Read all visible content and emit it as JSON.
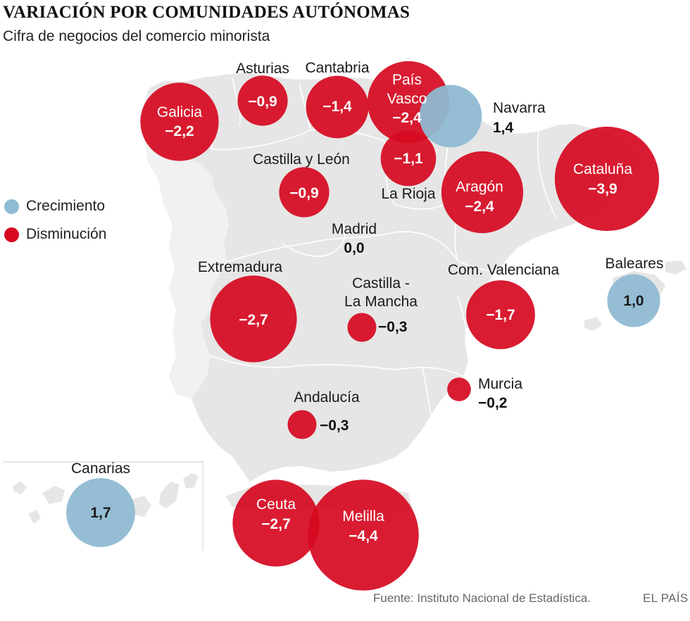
{
  "title": "VARIACIÓN POR COMUNIDADES AUTÓNOMAS",
  "subtitle": "Cifra de negocios del comercio minorista",
  "legend": {
    "growth": {
      "label": "Crecimiento",
      "color": "#8fbbd3"
    },
    "decrease": {
      "label": "Disminución",
      "color": "#d6091f"
    }
  },
  "source": "Fuente: Instituto Nacional de Estadística.",
  "brand": "EL PAÍS",
  "chart_data": {
    "type": "proportional-symbol-map",
    "title": "VARIACIÓN POR COMUNIDADES AUTÓNOMAS",
    "subtitle": "Cifra de negocios del comercio minorista",
    "unit": "%",
    "regions": [
      {
        "name": "Galicia",
        "value": -2.2,
        "label": "−2,2",
        "label_position": "inside"
      },
      {
        "name": "Asturias",
        "value": -0.9,
        "label": "−0,9",
        "label_position": "above"
      },
      {
        "name": "Cantabria",
        "value": -1.4,
        "label": "−1,4",
        "label_position": "above"
      },
      {
        "name": "País Vasco",
        "value": -2.4,
        "label": "−2,4",
        "label_position": "inside"
      },
      {
        "name": "Navarra",
        "value": 1.4,
        "label": "1,4",
        "label_position": "right"
      },
      {
        "name": "La Rioja",
        "value": -1.1,
        "label": "−1,1",
        "label_position": "below"
      },
      {
        "name": "Castilla y León",
        "value": -0.9,
        "label": "−0,9",
        "label_position": "above"
      },
      {
        "name": "Aragón",
        "value": -2.4,
        "label": "−2,4",
        "label_position": "inside"
      },
      {
        "name": "Cataluña",
        "value": -3.9,
        "label": "−3,9",
        "label_position": "inside"
      },
      {
        "name": "Madrid",
        "value": 0.0,
        "label": "0,0",
        "label_position": "none"
      },
      {
        "name": "Extremadura",
        "value": -2.7,
        "label": "−2,7",
        "label_position": "above"
      },
      {
        "name": "Castilla - La Mancha",
        "value": -0.3,
        "label": "−0,3",
        "label_position": "above"
      },
      {
        "name": "Com. Valenciana",
        "value": -1.7,
        "label": "−1,7",
        "label_position": "above"
      },
      {
        "name": "Baleares",
        "value": 1.0,
        "label": "1,0",
        "label_position": "above"
      },
      {
        "name": "Murcia",
        "value": -0.2,
        "label": "−0,2",
        "label_position": "right"
      },
      {
        "name": "Andalucía",
        "value": -0.3,
        "label": "−0,3",
        "label_position": "above"
      },
      {
        "name": "Canarias",
        "value": 1.7,
        "label": "1,7",
        "label_position": "above"
      },
      {
        "name": "Ceuta",
        "value": -2.7,
        "label": "−2,7",
        "label_position": "inside"
      },
      {
        "name": "Melilla",
        "value": -4.4,
        "label": "−4,4",
        "label_position": "inside"
      }
    ],
    "labels": {
      "castilla_la_mancha_line1": "Castilla -",
      "castilla_la_mancha_line2": "La Mancha",
      "pais_vasco_line1": "País",
      "pais_vasco_line2": "Vasco"
    }
  }
}
